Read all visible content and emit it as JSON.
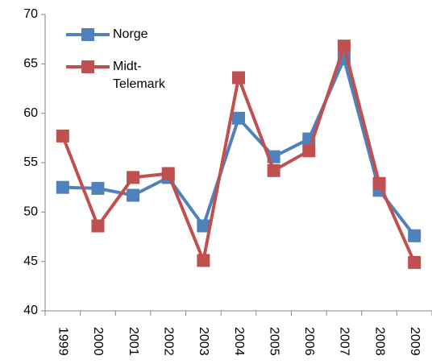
{
  "chart_data": {
    "type": "line",
    "categories": [
      "1999",
      "2000",
      "2001",
      "2002",
      "2003",
      "2004",
      "2005",
      "2006",
      "2007",
      "2008",
      "2009"
    ],
    "series": [
      {
        "name": "Norge",
        "color": "#4f81bd",
        "values": [
          52.5,
          52.4,
          51.7,
          53.5,
          48.6,
          59.5,
          55.6,
          57.4,
          65.5,
          52.2,
          47.6
        ]
      },
      {
        "name": "Midt-Telemark",
        "color": "#c0504d",
        "values": [
          57.7,
          48.6,
          53.5,
          53.9,
          45.1,
          63.6,
          54.2,
          56.2,
          66.8,
          52.9,
          44.9
        ]
      }
    ],
    "ylim": [
      40,
      70
    ],
    "yticks": [
      40,
      45,
      50,
      55,
      60,
      65,
      70
    ],
    "grid": false,
    "legend": "top-left"
  }
}
